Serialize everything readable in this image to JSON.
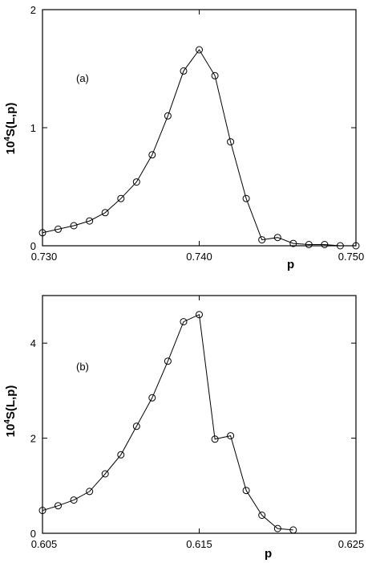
{
  "chart_data": [
    {
      "type": "line",
      "panel_label": "(a)",
      "xlabel": "p",
      "ylabel_prefix": "10",
      "ylabel_exp": "4",
      "ylabel_suffix": "S(L,p)",
      "xlim": [
        0.73,
        0.75
      ],
      "ylim": [
        0,
        2
      ],
      "x_ticks": [
        0.73,
        0.74,
        0.75
      ],
      "x_tick_labels": [
        "0.730",
        "0.740",
        "0.750"
      ],
      "y_ticks": [
        0,
        1,
        2
      ],
      "y_tick_labels": [
        "0",
        "1",
        "2"
      ],
      "grid": false,
      "marker": "open-circle",
      "series": [
        {
          "x": [
            0.73,
            0.731,
            0.732,
            0.733,
            0.734,
            0.735,
            0.736,
            0.737,
            0.738,
            0.739,
            0.74,
            0.741,
            0.742,
            0.743,
            0.744,
            0.745,
            0.746,
            0.747,
            0.748,
            0.749,
            0.75
          ],
          "y": [
            0.11,
            0.14,
            0.17,
            0.21,
            0.28,
            0.4,
            0.54,
            0.77,
            1.1,
            1.48,
            1.66,
            1.44,
            0.88,
            0.4,
            0.05,
            0.07,
            0.02,
            0.01,
            0.01,
            0.0,
            0.0
          ]
        }
      ]
    },
    {
      "type": "line",
      "panel_label": "(b)",
      "xlabel": "p",
      "ylabel_prefix": "10",
      "ylabel_exp": "4",
      "ylabel_suffix": "S(L,p)",
      "xlim": [
        0.605,
        0.625
      ],
      "ylim": [
        0,
        5
      ],
      "x_ticks": [
        0.605,
        0.615,
        0.625
      ],
      "x_tick_labels": [
        "0.605",
        "0.615",
        "0.625"
      ],
      "y_ticks": [
        0,
        2,
        4
      ],
      "y_tick_labels": [
        "0",
        "2",
        "4"
      ],
      "grid": false,
      "marker": "open-circle",
      "series": [
        {
          "x": [
            0.605,
            0.606,
            0.607,
            0.608,
            0.609,
            0.61,
            0.611,
            0.612,
            0.613,
            0.614,
            0.615,
            0.616,
            0.617,
            0.618,
            0.619,
            0.62,
            0.621
          ],
          "y": [
            0.48,
            0.58,
            0.7,
            0.88,
            1.25,
            1.65,
            2.25,
            2.85,
            3.62,
            4.45,
            4.6,
            1.98,
            2.05,
            0.9,
            0.38,
            0.1,
            0.07
          ]
        }
      ]
    }
  ]
}
